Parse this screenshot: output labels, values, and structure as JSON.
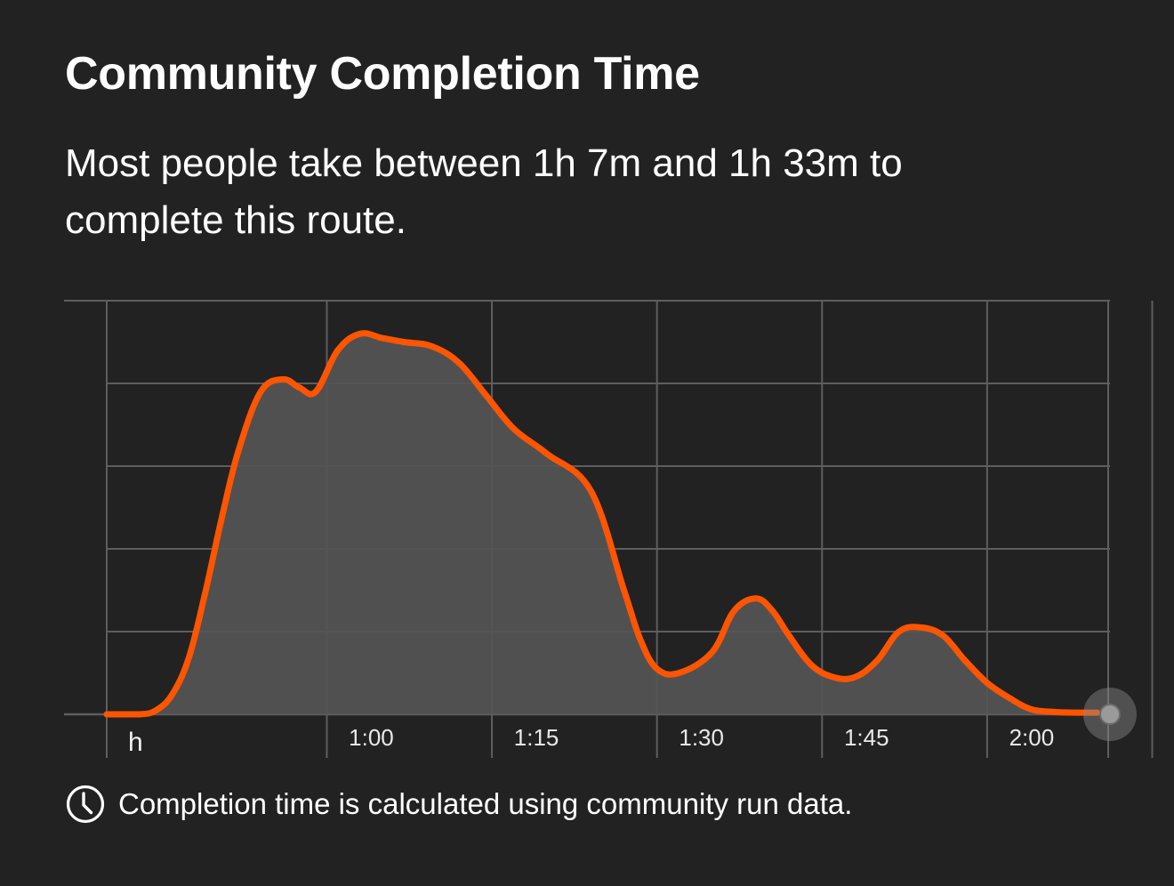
{
  "header": {
    "title": "Community Completion Time",
    "subtitle": "Most people take between 1h 7m and 1h 33m to complete this route."
  },
  "footnote": {
    "text": "Completion time is calculated using community run data.",
    "icon": "clock-icon"
  },
  "colors": {
    "background": "#222222",
    "line": "#ff5500",
    "fill": "#555555",
    "grid": "#5e5e5e",
    "scrubber": "#8a8a8a"
  },
  "chart_data": {
    "type": "area",
    "unit_label": "h",
    "x_unit": "minutes",
    "xlim": [
      40,
      131
    ],
    "ylim": [
      0,
      5
    ],
    "x_ticks": [
      {
        "value": 60,
        "label": "1:00"
      },
      {
        "value": 75,
        "label": "1:15"
      },
      {
        "value": 90,
        "label": "1:30"
      },
      {
        "value": 105,
        "label": "1:45"
      },
      {
        "value": 120,
        "label": "2:00"
      }
    ],
    "grid": true,
    "x": [
      40,
      43,
      44.5,
      46,
      47.5,
      49,
      50.5,
      52,
      54,
      56,
      57.5,
      59,
      61,
      63,
      65,
      67,
      69.5,
      72,
      74.5,
      77,
      80,
      84,
      87,
      88.5,
      90,
      92,
      95,
      97,
      99,
      100.5,
      102,
      104,
      106,
      108,
      110,
      112,
      114,
      116,
      118,
      120,
      122,
      124,
      126,
      128,
      130
    ],
    "y": [
      0,
      0,
      0.05,
      0.25,
      0.7,
      1.5,
      2.4,
      3.2,
      3.9,
      4.05,
      3.95,
      3.9,
      4.4,
      4.6,
      4.55,
      4.5,
      4.45,
      4.25,
      3.85,
      3.45,
      3.15,
      2.7,
      1.5,
      0.9,
      0.55,
      0.5,
      0.75,
      1.25,
      1.4,
      1.25,
      0.95,
      0.6,
      0.45,
      0.45,
      0.65,
      1.0,
      1.05,
      0.95,
      0.65,
      0.38,
      0.2,
      0.06,
      0.03,
      0.02,
      0.02
    ]
  }
}
